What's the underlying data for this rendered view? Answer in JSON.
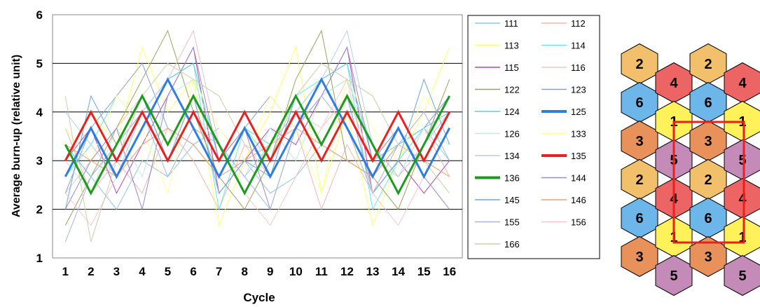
{
  "chart_data": {
    "type": "line",
    "xlabel": "Cycle",
    "ylabel": "Average burn-up (relative unit)",
    "ylim": [
      1,
      6
    ],
    "yticks": [
      "1",
      "2",
      "3",
      "4",
      "5",
      "6"
    ],
    "categories": [
      "1",
      "2",
      "3",
      "4",
      "5",
      "6",
      "7",
      "8",
      "9",
      "10",
      "11",
      "12",
      "13",
      "14",
      "15",
      "16"
    ],
    "grid": "horizontal",
    "legend_position": "right",
    "series": [
      {
        "name": "111",
        "color": "#8fc6e8",
        "width": 1,
        "values": [
          3.33,
          2.67,
          2.0,
          3.0,
          2.67,
          3.33,
          3.67,
          3.0,
          2.33,
          2.67,
          3.33,
          3.0,
          2.67,
          3.33,
          3.67,
          3.0
        ]
      },
      {
        "name": "112",
        "color": "#f0b8b0",
        "width": 1,
        "values": [
          3.67,
          2.33,
          3.0,
          2.33,
          3.67,
          3.0,
          2.0,
          3.33,
          2.67,
          3.67,
          2.0,
          3.33,
          2.33,
          3.0,
          3.67,
          2.67
        ]
      },
      {
        "name": "113",
        "color": "#ffff66",
        "width": 1,
        "values": [
          3.0,
          4.0,
          3.33,
          5.33,
          4.0,
          4.67,
          1.67,
          3.0,
          4.0,
          5.33,
          2.33,
          4.0,
          1.67,
          3.0,
          4.0,
          5.33
        ]
      },
      {
        "name": "114",
        "color": "#66e6f2",
        "width": 1,
        "values": [
          2.67,
          3.33,
          4.33,
          3.67,
          4.67,
          5.0,
          2.0,
          3.67,
          3.0,
          4.33,
          4.67,
          5.0,
          2.0,
          3.0,
          3.67,
          4.33
        ]
      },
      {
        "name": "115",
        "color": "#b048b0",
        "width": 1,
        "values": [
          3.0,
          3.67,
          2.33,
          3.33,
          4.33,
          5.33,
          2.33,
          3.0,
          3.67,
          3.33,
          4.33,
          5.33,
          2.33,
          3.0,
          2.33,
          3.0
        ]
      },
      {
        "name": "116",
        "color": "#f2c8c0",
        "width": 1,
        "values": [
          2.33,
          3.0,
          3.67,
          4.33,
          3.0,
          4.0,
          3.33,
          2.67,
          3.33,
          4.0,
          3.67,
          4.33,
          3.0,
          2.67,
          3.33,
          4.0
        ]
      },
      {
        "name": "122",
        "color": "#a0a060",
        "width": 1,
        "values": [
          1.67,
          2.67,
          3.67,
          4.67,
          5.67,
          4.0,
          2.67,
          2.0,
          3.0,
          4.67,
          5.67,
          3.0,
          2.67,
          2.0,
          3.33,
          4.67
        ]
      },
      {
        "name": "123",
        "color": "#8aa0d8",
        "width": 1,
        "values": [
          2.33,
          3.67,
          4.33,
          5.0,
          3.67,
          3.33,
          2.67,
          3.67,
          4.33,
          3.67,
          4.33,
          4.67,
          3.33,
          2.67,
          3.67,
          4.33
        ]
      },
      {
        "name": "124",
        "color": "#5ad0e0",
        "width": 1,
        "values": [
          3.33,
          2.67,
          3.33,
          4.0,
          4.67,
          5.0,
          3.0,
          3.67,
          3.33,
          4.0,
          4.67,
          5.0,
          3.0,
          3.33,
          3.67,
          4.0
        ]
      },
      {
        "name": "125",
        "color": "#2f7de0",
        "width": 3,
        "values": [
          2.67,
          3.67,
          2.67,
          3.67,
          4.67,
          3.67,
          2.67,
          3.67,
          2.67,
          3.67,
          4.67,
          3.67,
          2.67,
          3.67,
          2.67,
          3.67
        ]
      },
      {
        "name": "126",
        "color": "#c0ecd8",
        "width": 1,
        "values": [
          3.0,
          2.33,
          3.67,
          2.67,
          4.33,
          4.67,
          3.33,
          2.67,
          3.67,
          3.0,
          4.33,
          4.67,
          3.33,
          2.67,
          3.67,
          3.33
        ]
      },
      {
        "name": "133",
        "color": "#ffff99",
        "width": 1,
        "values": [
          3.67,
          3.0,
          4.33,
          3.67,
          2.33,
          4.67,
          3.67,
          3.0,
          4.33,
          3.67,
          2.33,
          4.67,
          3.67,
          3.0,
          4.33,
          3.67
        ]
      },
      {
        "name": "134",
        "color": "#b6cfe8",
        "width": 1,
        "values": [
          4.0,
          3.33,
          2.67,
          4.0,
          4.67,
          5.67,
          3.33,
          2.67,
          3.33,
          4.0,
          4.67,
          5.67,
          3.33,
          2.67,
          3.33,
          4.0
        ]
      },
      {
        "name": "135",
        "color": "#e82020",
        "width": 3,
        "values": [
          3.0,
          4.0,
          3.0,
          4.0,
          3.0,
          4.0,
          3.0,
          4.0,
          3.0,
          4.0,
          3.0,
          4.0,
          3.0,
          4.0,
          3.0,
          4.0
        ]
      },
      {
        "name": "136",
        "color": "#1e9a1e",
        "width": 3,
        "values": [
          3.33,
          2.33,
          3.33,
          4.33,
          3.33,
          4.33,
          3.33,
          2.33,
          3.33,
          4.33,
          3.33,
          4.33,
          3.33,
          2.33,
          3.33,
          4.33
        ]
      },
      {
        "name": "144",
        "color": "#9a8ac8",
        "width": 1,
        "values": [
          2.0,
          3.0,
          3.67,
          2.0,
          4.33,
          5.33,
          3.0,
          3.67,
          2.0,
          3.67,
          4.33,
          5.33,
          3.0,
          3.67,
          2.67,
          2.0
        ]
      },
      {
        "name": "145",
        "color": "#6aa8d8",
        "width": 1,
        "values": [
          2.0,
          4.33,
          3.33,
          4.33,
          3.0,
          4.33,
          2.33,
          3.0,
          2.67,
          4.33,
          3.33,
          4.33,
          2.33,
          3.0,
          4.67,
          3.33
        ]
      },
      {
        "name": "146",
        "color": "#f0a070",
        "width": 1,
        "values": [
          3.33,
          3.0,
          2.67,
          3.33,
          3.67,
          3.33,
          2.67,
          3.0,
          3.33,
          3.67,
          3.33,
          3.0,
          2.67,
          3.33,
          3.0,
          2.67
        ]
      },
      {
        "name": "155",
        "color": "#a8b4e0",
        "width": 1,
        "values": [
          1.33,
          2.67,
          3.33,
          4.0,
          2.67,
          3.67,
          3.33,
          2.67,
          2.0,
          3.67,
          4.33,
          3.67,
          2.33,
          3.33,
          4.0,
          3.0
        ]
      },
      {
        "name": "156",
        "color": "#f4c6c6",
        "width": 1,
        "values": [
          2.33,
          1.67,
          2.67,
          3.67,
          4.67,
          5.67,
          3.33,
          2.33,
          1.67,
          2.67,
          3.67,
          4.67,
          2.33,
          1.67,
          2.67,
          3.67
        ]
      },
      {
        "name": "166",
        "color": "#d0cca8",
        "width": 1,
        "values": [
          4.33,
          1.33,
          3.0,
          4.33,
          5.0,
          4.67,
          4.33,
          3.33,
          3.0,
          4.33,
          5.0,
          4.67,
          4.33,
          3.33,
          3.0,
          2.33
        ]
      }
    ]
  },
  "hexmap": {
    "hexes": [
      {
        "label": "2",
        "color": "#f2c06a",
        "col": 0,
        "row": 0
      },
      {
        "label": "6",
        "color": "#6cb6ea",
        "col": 0,
        "row": 1
      },
      {
        "label": "3",
        "color": "#e8915a",
        "col": 0,
        "row": 2
      },
      {
        "label": "2",
        "color": "#f2c06a",
        "col": 0,
        "row": 3
      },
      {
        "label": "6",
        "color": "#6cb6ea",
        "col": 0,
        "row": 4
      },
      {
        "label": "3",
        "color": "#e8915a",
        "col": 0,
        "row": 5
      },
      {
        "label": "4",
        "color": "#ec6464",
        "col": 1,
        "row": 0
      },
      {
        "label": "1",
        "color": "#fff15a",
        "col": 1,
        "row": 1
      },
      {
        "label": "5",
        "color": "#c48ab8",
        "col": 1,
        "row": 2
      },
      {
        "label": "4",
        "color": "#ec6464",
        "col": 1,
        "row": 3
      },
      {
        "label": "1",
        "color": "#fff15a",
        "col": 1,
        "row": 4
      },
      {
        "label": "5",
        "color": "#c48ab8",
        "col": 1,
        "row": 5
      },
      {
        "label": "2",
        "color": "#f2c06a",
        "col": 2,
        "row": 0
      },
      {
        "label": "6",
        "color": "#6cb6ea",
        "col": 2,
        "row": 1
      },
      {
        "label": "3",
        "color": "#e8915a",
        "col": 2,
        "row": 2
      },
      {
        "label": "2",
        "color": "#f2c06a",
        "col": 2,
        "row": 3
      },
      {
        "label": "6",
        "color": "#6cb6ea",
        "col": 2,
        "row": 4
      },
      {
        "label": "3",
        "color": "#e8915a",
        "col": 2,
        "row": 5
      },
      {
        "label": "4",
        "color": "#ec6464",
        "col": 3,
        "row": 0
      },
      {
        "label": "1",
        "color": "#fff15a",
        "col": 3,
        "row": 1
      },
      {
        "label": "5",
        "color": "#c48ab8",
        "col": 3,
        "row": 2
      },
      {
        "label": "4",
        "color": "#ec6464",
        "col": 3,
        "row": 3
      },
      {
        "label": "1",
        "color": "#fff15a",
        "col": 3,
        "row": 4
      },
      {
        "label": "5",
        "color": "#c48ab8",
        "col": 3,
        "row": 5
      }
    ],
    "highlight_color": "#e8201e"
  }
}
